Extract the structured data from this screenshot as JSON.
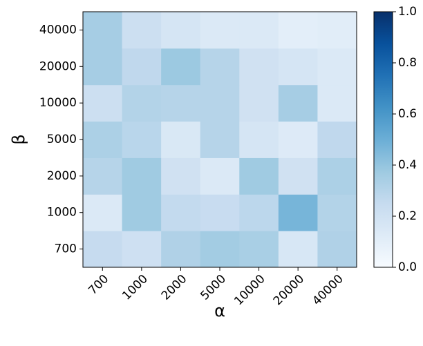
{
  "chart_data": {
    "type": "heatmap",
    "x_label": "α",
    "y_label": "β",
    "x_categories": [
      "700",
      "1000",
      "2000",
      "5000",
      "10000",
      "20000",
      "40000"
    ],
    "y_categories": [
      "700",
      "1000",
      "2000",
      "5000",
      "10000",
      "20000",
      "40000"
    ],
    "values": [
      [
        0.25,
        0.21,
        0.32,
        0.36,
        0.34,
        0.16,
        0.32
      ],
      [
        0.14,
        0.37,
        0.26,
        0.24,
        0.28,
        0.47,
        0.31
      ],
      [
        0.3,
        0.37,
        0.2,
        0.14,
        0.37,
        0.2,
        0.33
      ],
      [
        0.33,
        0.29,
        0.15,
        0.3,
        0.17,
        0.13,
        0.27
      ],
      [
        0.22,
        0.31,
        0.3,
        0.3,
        0.2,
        0.35,
        0.14
      ],
      [
        0.35,
        0.27,
        0.38,
        0.3,
        0.2,
        0.17,
        0.14
      ],
      [
        0.35,
        0.22,
        0.17,
        0.14,
        0.14,
        0.1,
        0.11
      ]
    ],
    "colormap": [
      "#f7fbff",
      "#deebf7",
      "#c6dbef",
      "#9ecae1",
      "#6baed6",
      "#4292c6",
      "#2171b5",
      "#08519c",
      "#08306b"
    ],
    "clim": [
      0,
      1
    ],
    "cticks": [
      {
        "value": 0,
        "label": "0.0"
      },
      0.2,
      0.4,
      0.6,
      0.8,
      {
        "value": 1,
        "label": "1.0"
      }
    ]
  }
}
